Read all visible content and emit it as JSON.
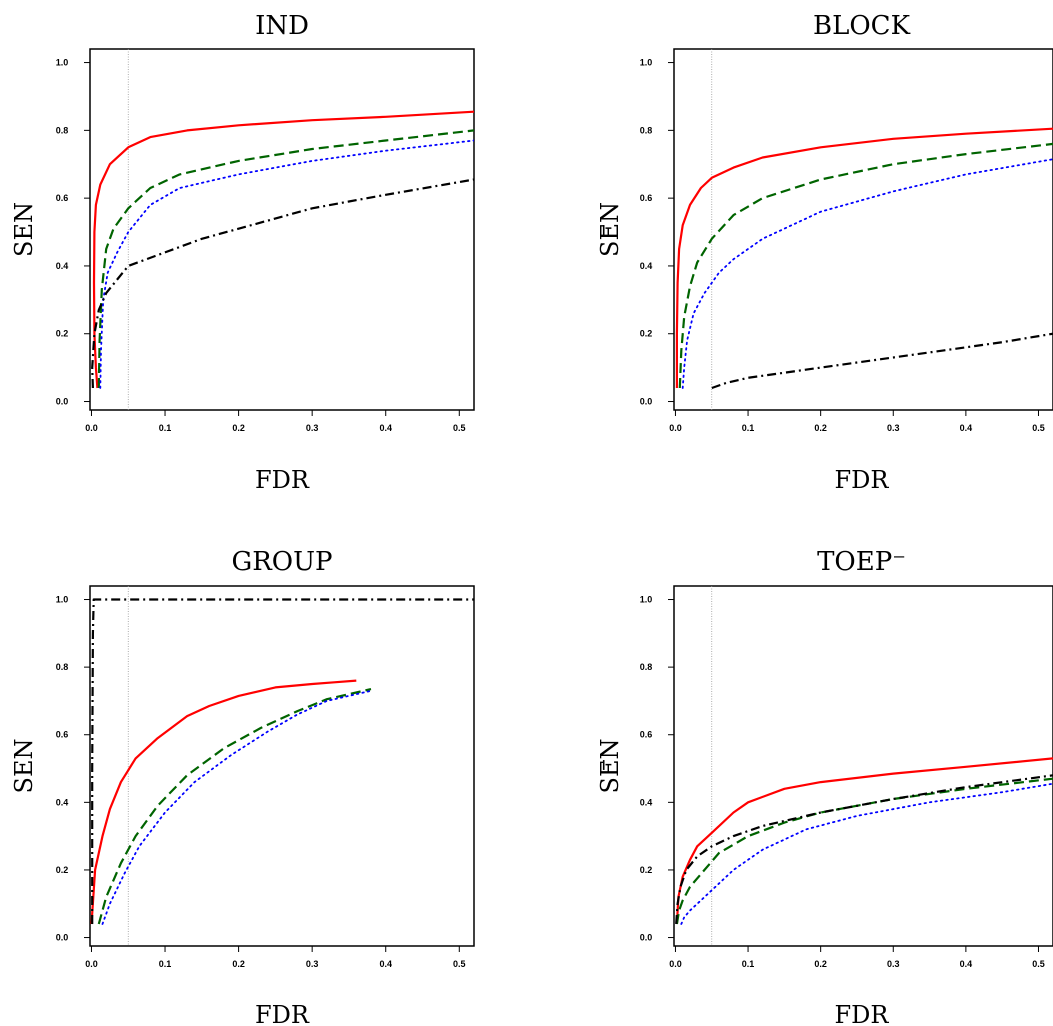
{
  "chart_data": [
    {
      "type": "line",
      "title": "IND",
      "xlabel": "FDR",
      "ylabel": "SEN",
      "xlim": [
        0,
        0.5
      ],
      "ylim": [
        0,
        1
      ],
      "xticks": [
        "0.0",
        "0.1",
        "0.2",
        "0.3",
        "0.4",
        "0.5"
      ],
      "yticks": [
        "0.0",
        "0.2",
        "0.4",
        "0.6",
        "0.8",
        "1.0"
      ],
      "reference_line_x": 0.05,
      "series": [
        {
          "color": "#ff0000",
          "style": "solid",
          "x": [
            0.008,
            0.006,
            0.004,
            0.0035,
            0.004,
            0.006,
            0.012,
            0.025,
            0.05,
            0.08,
            0.13,
            0.2,
            0.3,
            0.4,
            0.52
          ],
          "y": [
            0.04,
            0.1,
            0.2,
            0.35,
            0.5,
            0.58,
            0.64,
            0.7,
            0.75,
            0.78,
            0.8,
            0.815,
            0.83,
            0.84,
            0.855
          ]
        },
        {
          "color": "#006400",
          "style": "dashed",
          "x": [
            0.01,
            0.011,
            0.014,
            0.02,
            0.03,
            0.05,
            0.08,
            0.12,
            0.2,
            0.3,
            0.4,
            0.52
          ],
          "y": [
            0.04,
            0.18,
            0.33,
            0.45,
            0.51,
            0.57,
            0.63,
            0.67,
            0.71,
            0.745,
            0.77,
            0.8
          ]
        },
        {
          "color": "#0000ff",
          "style": "dotted",
          "x": [
            0.012,
            0.013,
            0.016,
            0.022,
            0.035,
            0.05,
            0.08,
            0.12,
            0.2,
            0.3,
            0.4,
            0.52
          ],
          "y": [
            0.04,
            0.15,
            0.3,
            0.38,
            0.44,
            0.5,
            0.58,
            0.63,
            0.67,
            0.71,
            0.74,
            0.77
          ]
        },
        {
          "color": "#000000",
          "style": "dashdot",
          "x": [
            0.002,
            0.001,
            0.004,
            0.01,
            0.02,
            0.035,
            0.05,
            0.1,
            0.15,
            0.2,
            0.3,
            0.35,
            0.4,
            0.52
          ],
          "y": [
            0.04,
            0.1,
            0.2,
            0.27,
            0.32,
            0.36,
            0.4,
            0.44,
            0.48,
            0.51,
            0.57,
            0.59,
            0.61,
            0.655
          ]
        }
      ]
    },
    {
      "type": "line",
      "title": "BLOCK",
      "xlabel": "FDR",
      "ylabel": "SEN",
      "ylabel_extra": "–",
      "xlim": [
        0,
        0.5
      ],
      "ylim": [
        0,
        1
      ],
      "xticks": [
        "0.0",
        "0.1",
        "0.2",
        "0.3",
        "0.4",
        "0.5"
      ],
      "yticks": [
        "0.0",
        "0.2",
        "0.4",
        "0.6",
        "0.8",
        "1.0"
      ],
      "reference_line_x": 0.05,
      "series": [
        {
          "color": "#ff0000",
          "style": "solid",
          "x": [
            0.002,
            0.002,
            0.003,
            0.005,
            0.01,
            0.02,
            0.035,
            0.05,
            0.08,
            0.12,
            0.2,
            0.3,
            0.4,
            0.52
          ],
          "y": [
            0.04,
            0.2,
            0.35,
            0.45,
            0.52,
            0.58,
            0.63,
            0.66,
            0.69,
            0.72,
            0.75,
            0.775,
            0.79,
            0.805
          ]
        },
        {
          "color": "#006400",
          "style": "dashed",
          "x": [
            0.006,
            0.008,
            0.012,
            0.02,
            0.03,
            0.05,
            0.08,
            0.12,
            0.2,
            0.3,
            0.4,
            0.52
          ],
          "y": [
            0.04,
            0.15,
            0.25,
            0.34,
            0.41,
            0.48,
            0.55,
            0.6,
            0.655,
            0.7,
            0.73,
            0.76
          ]
        },
        {
          "color": "#0000ff",
          "style": "dotted",
          "x": [
            0.01,
            0.012,
            0.016,
            0.025,
            0.04,
            0.06,
            0.08,
            0.12,
            0.2,
            0.3,
            0.4,
            0.52
          ],
          "y": [
            0.04,
            0.1,
            0.18,
            0.26,
            0.32,
            0.38,
            0.42,
            0.48,
            0.56,
            0.62,
            0.67,
            0.715
          ]
        },
        {
          "color": "#000000",
          "style": "dashdot",
          "x": [
            0.05,
            0.07,
            0.1,
            0.15,
            0.2,
            0.25,
            0.3,
            0.35,
            0.4,
            0.45,
            0.52
          ],
          "y": [
            0.04,
            0.055,
            0.07,
            0.085,
            0.1,
            0.115,
            0.13,
            0.145,
            0.16,
            0.175,
            0.2
          ]
        }
      ]
    },
    {
      "type": "line",
      "title": "GROUP",
      "xlabel": "FDR",
      "ylabel": "SEN",
      "xlim": [
        0,
        0.5
      ],
      "ylim": [
        0,
        1
      ],
      "xticks": [
        "0.0",
        "0.1",
        "0.2",
        "0.3",
        "0.4",
        "0.5"
      ],
      "yticks": [
        "0.0",
        "0.2",
        "0.4",
        "0.6",
        "0.8",
        "1.0"
      ],
      "reference_line_x": 0.05,
      "series": [
        {
          "color": "#ff0000",
          "style": "solid",
          "x": [
            0.0,
            0.005,
            0.015,
            0.025,
            0.04,
            0.06,
            0.09,
            0.13,
            0.16,
            0.2,
            0.25,
            0.3,
            0.33,
            0.36
          ],
          "y": [
            0.04,
            0.2,
            0.3,
            0.38,
            0.46,
            0.53,
            0.59,
            0.655,
            0.685,
            0.715,
            0.74,
            0.75,
            0.755,
            0.76
          ]
        },
        {
          "color": "#006400",
          "style": "dashed",
          "x": [
            0.01,
            0.02,
            0.04,
            0.06,
            0.09,
            0.13,
            0.18,
            0.23,
            0.28,
            0.32,
            0.35,
            0.38
          ],
          "y": [
            0.04,
            0.12,
            0.22,
            0.3,
            0.39,
            0.48,
            0.56,
            0.62,
            0.67,
            0.705,
            0.72,
            0.735
          ]
        },
        {
          "color": "#0000ff",
          "style": "dotted",
          "x": [
            0.015,
            0.025,
            0.045,
            0.065,
            0.1,
            0.14,
            0.19,
            0.24,
            0.28,
            0.32,
            0.35,
            0.38
          ],
          "y": [
            0.04,
            0.1,
            0.19,
            0.27,
            0.37,
            0.46,
            0.54,
            0.61,
            0.66,
            0.7,
            0.715,
            0.73
          ]
        },
        {
          "color": "#000000",
          "style": "dashdot",
          "x": [
            0.001,
            0.001,
            0.002,
            0.003,
            0.52
          ],
          "y": [
            0.04,
            0.5,
            0.9,
            1.0,
            1.0
          ]
        }
      ]
    },
    {
      "type": "line",
      "title": "TOEP⁻",
      "xlabel": "FDR",
      "ylabel": "SEN",
      "ylabel_extra": "–",
      "xlim": [
        0,
        0.5
      ],
      "ylim": [
        0,
        1
      ],
      "xticks": [
        "0.0",
        "0.1",
        "0.2",
        "0.3",
        "0.4",
        "0.5"
      ],
      "yticks": [
        "0.0",
        "0.2",
        "0.4",
        "0.6",
        "0.8",
        "1.0"
      ],
      "reference_line_x": 0.05,
      "series": [
        {
          "color": "#ff0000",
          "style": "solid",
          "x": [
            0.002,
            0.004,
            0.01,
            0.02,
            0.03,
            0.05,
            0.08,
            0.1,
            0.15,
            0.2,
            0.3,
            0.4,
            0.52
          ],
          "y": [
            0.04,
            0.12,
            0.18,
            0.23,
            0.27,
            0.31,
            0.37,
            0.4,
            0.44,
            0.46,
            0.485,
            0.505,
            0.53
          ]
        },
        {
          "color": "#006400",
          "style": "dashed",
          "x": [
            0.002,
            0.005,
            0.01,
            0.02,
            0.04,
            0.06,
            0.1,
            0.15,
            0.2,
            0.3,
            0.4,
            0.52
          ],
          "y": [
            0.04,
            0.08,
            0.11,
            0.15,
            0.2,
            0.25,
            0.3,
            0.34,
            0.37,
            0.41,
            0.44,
            0.47
          ]
        },
        {
          "color": "#0000ff",
          "style": "dotted",
          "x": [
            0.008,
            0.012,
            0.02,
            0.035,
            0.05,
            0.08,
            0.12,
            0.18,
            0.25,
            0.35,
            0.45,
            0.52
          ],
          "y": [
            0.04,
            0.06,
            0.08,
            0.11,
            0.14,
            0.2,
            0.26,
            0.32,
            0.36,
            0.4,
            0.43,
            0.455
          ]
        },
        {
          "color": "#000000",
          "style": "dashdot",
          "x": [
            0.001,
            0.003,
            0.007,
            0.015,
            0.03,
            0.05,
            0.08,
            0.12,
            0.2,
            0.3,
            0.4,
            0.52
          ],
          "y": [
            0.04,
            0.1,
            0.15,
            0.2,
            0.24,
            0.27,
            0.3,
            0.33,
            0.37,
            0.41,
            0.445,
            0.48
          ]
        }
      ]
    }
  ]
}
